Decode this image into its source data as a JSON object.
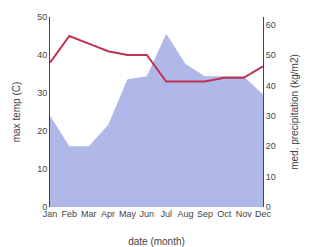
{
  "chart_data": {
    "type": "line",
    "categories": [
      "Jan",
      "Feb",
      "Mar",
      "Apr",
      "May",
      "Jun",
      "Jul",
      "Aug",
      "Sep",
      "Oct",
      "Nov",
      "Dec"
    ],
    "xlabel": "date (month)",
    "ylabel": "max temp (C)",
    "y2label": "med. precipitation (kg/m2)",
    "series": [
      {
        "type": "area",
        "axis": "y2",
        "color": "#b0b8e8",
        "values": [
          30,
          20,
          20,
          27,
          42,
          43,
          57,
          47,
          43,
          43,
          43,
          37
        ]
      },
      {
        "type": "line",
        "color": "#c03050",
        "values": [
          38,
          45,
          43,
          41,
          40,
          40,
          33,
          33,
          33,
          34,
          34,
          37
        ]
      }
    ],
    "ylim": [
      0,
      50
    ],
    "yticks": [
      0,
      10,
      20,
      30,
      40,
      50
    ],
    "y2lim": [
      0,
      62.5
    ],
    "y2ticks": [
      0,
      10,
      20,
      30,
      40,
      50,
      60
    ],
    "grid": false
  }
}
